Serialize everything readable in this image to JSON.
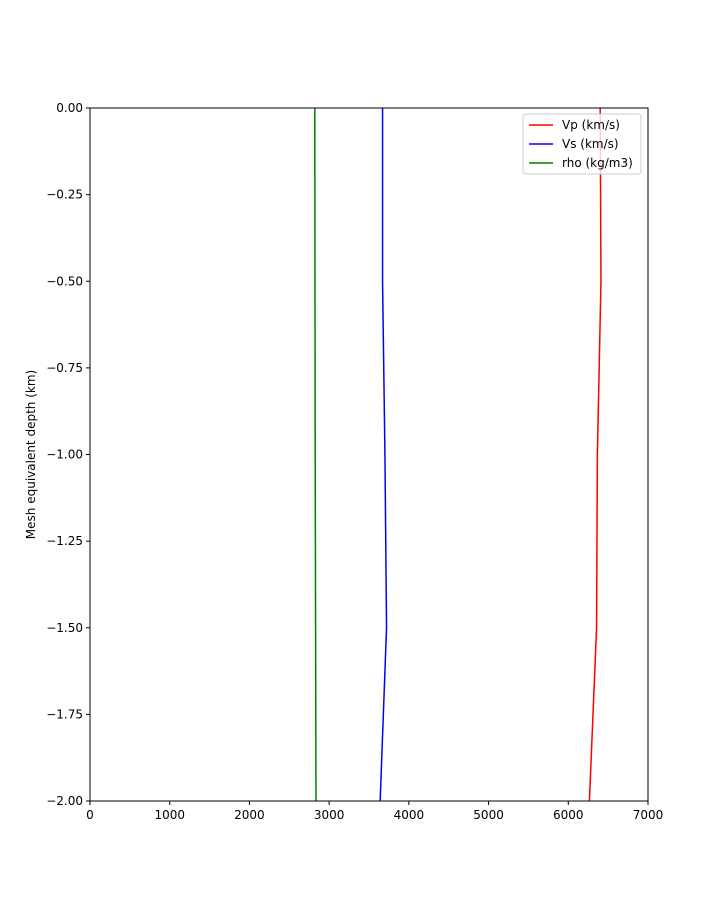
{
  "chart_data": {
    "type": "line",
    "title": "",
    "xlabel": "",
    "ylabel": "Mesh equivalent depth (km)",
    "xlim": [
      0,
      7000
    ],
    "ylim": [
      -2.0,
      0.0
    ],
    "xticks": [
      0,
      1000,
      2000,
      3000,
      4000,
      5000,
      6000,
      7000
    ],
    "xtick_labels": [
      "0",
      "1000",
      "2000",
      "3000",
      "4000",
      "5000",
      "6000",
      "7000"
    ],
    "yticks": [
      0.0,
      -0.25,
      -0.5,
      -0.75,
      -1.0,
      -1.25,
      -1.5,
      -1.75,
      -2.0
    ],
    "ytick_labels": [
      "0.00",
      "−0.25",
      "−0.50",
      "−0.75",
      "−1.00",
      "−1.25",
      "−1.50",
      "−1.75",
      "−2.00"
    ],
    "grid": false,
    "legend_position": "top-right",
    "series": [
      {
        "name": "Vp (km/s)",
        "color": "#ff0000",
        "points": [
          [
            6400,
            0.0
          ],
          [
            6410,
            -0.5
          ],
          [
            6365,
            -1.0
          ],
          [
            6355,
            -1.5
          ],
          [
            6265,
            -2.0
          ]
        ]
      },
      {
        "name": "Vs (km/s)",
        "color": "#0000ff",
        "points": [
          [
            3670,
            0.0
          ],
          [
            3670,
            -0.5
          ],
          [
            3700,
            -1.0
          ],
          [
            3720,
            -1.5
          ],
          [
            3640,
            -2.0
          ]
        ]
      },
      {
        "name": "rho (kg/m3)",
        "color": "#008000",
        "points": [
          [
            2820,
            0.0
          ],
          [
            2825,
            -1.0
          ],
          [
            2835,
            -2.0
          ]
        ]
      }
    ]
  }
}
